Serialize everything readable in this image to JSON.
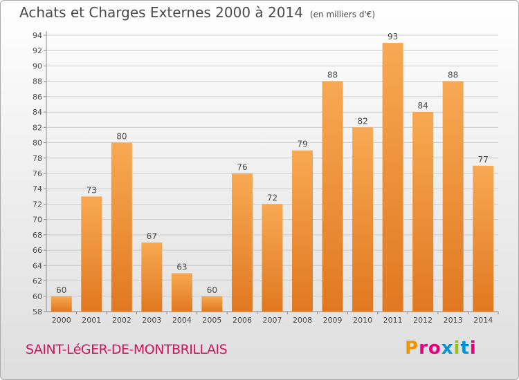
{
  "header": {
    "title": "Achats et Charges Externes 2000 à 2014",
    "unit": "(en milliers d'€)"
  },
  "footer": {
    "city": "SAINT-LéGER-DE-MONTBRILLAIS",
    "logo": "Proxiti",
    "logo_colors": [
      "#f29400",
      "#e6007e",
      "#e6007e",
      "#0094d5",
      "#95c11f",
      "#0094d5",
      "#e6007e"
    ]
  },
  "colors": {
    "bar_light": "#f8a953",
    "bar_dark": "#e07820",
    "grid": "#cccccc",
    "text": "#4a4a4a",
    "city": "#d1145a"
  },
  "chart_data": {
    "type": "bar",
    "categories": [
      "2000",
      "2001",
      "2002",
      "2003",
      "2004",
      "2005",
      "2006",
      "2007",
      "2008",
      "2009",
      "2010",
      "2011",
      "2012",
      "2013",
      "2014"
    ],
    "values": [
      60,
      73,
      80,
      67,
      63,
      60,
      76,
      72,
      79,
      88,
      82,
      93,
      84,
      88,
      77
    ],
    "data_labels": [
      "60",
      "73",
      "80",
      "67",
      "63",
      "60",
      "76",
      "72",
      "79",
      "88",
      "82",
      "93",
      "84",
      "88",
      "77"
    ],
    "yticks": [
      "58",
      "60",
      "62",
      "64",
      "66",
      "68",
      "70",
      "72",
      "74",
      "76",
      "78",
      "80",
      "82",
      "84",
      "86",
      "88",
      "90",
      "92",
      "94"
    ],
    "ylim": [
      58,
      94
    ],
    "grid": true,
    "legend": "none"
  }
}
